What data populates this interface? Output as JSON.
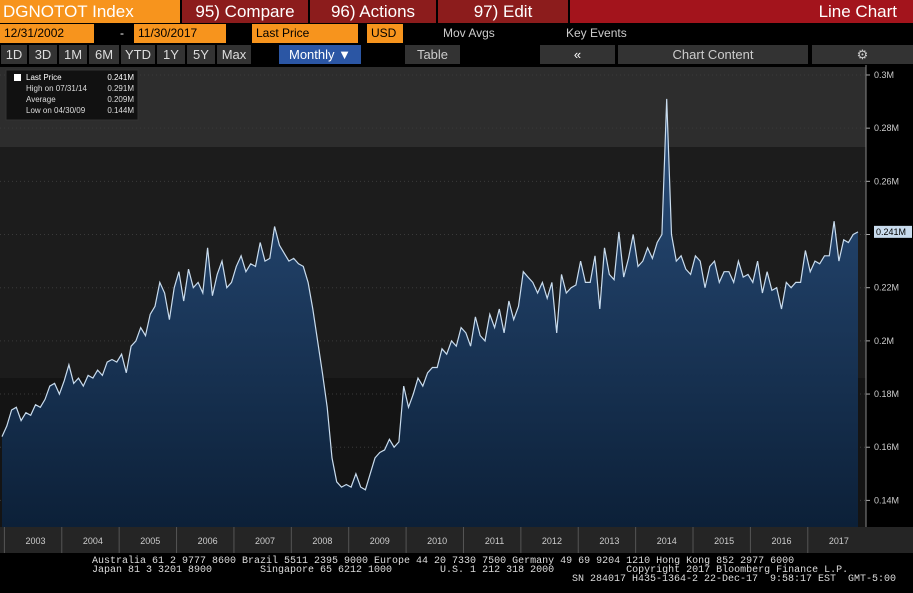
{
  "header": {
    "ticker": "DGNOTOT Index",
    "menu": [
      "95) Compare",
      "96) Actions",
      "97) Edit"
    ],
    "view": "Line Chart"
  },
  "controls": {
    "start_date": "12/31/2002",
    "separator": "-",
    "end_date": "11/30/2017",
    "field": "Last Price",
    "currency": "USD",
    "mov_avgs": "Mov Avgs",
    "key_events": "Key Events",
    "ranges": [
      "1D",
      "3D",
      "1M",
      "6M",
      "YTD",
      "1Y",
      "5Y",
      "Max"
    ],
    "period": "Monthly ▼",
    "table": "Table",
    "collapse": "«",
    "content": "Chart Content"
  },
  "legend": [
    {
      "label": "High on 07/31/14",
      "value": "0.291M"
    },
    {
      "label": "Average",
      "value": "0.209M"
    },
    {
      "label": "Low on 04/30/09",
      "value": "0.144M"
    }
  ],
  "chart_data": {
    "type": "line",
    "categories": [
      null,
      null,
      null,
      null,
      null,
      null,
      null,
      "2003",
      null,
      null,
      null,
      null,
      null,
      null,
      null,
      null,
      null,
      null,
      null,
      "2004",
      null,
      null,
      null,
      null,
      null,
      null,
      null,
      null,
      null,
      null,
      null,
      "2005",
      null,
      null,
      null,
      null,
      null,
      null,
      null,
      null,
      null,
      null,
      null,
      "2006",
      null,
      null,
      null,
      null,
      null,
      null,
      null,
      null,
      null,
      null,
      null,
      "2007",
      null,
      null,
      null,
      null,
      null,
      null,
      null,
      null,
      null,
      null,
      null,
      "2008",
      null,
      null,
      null,
      null,
      null,
      null,
      null,
      null,
      null,
      null,
      null,
      "2009",
      null,
      null,
      null,
      null,
      null,
      null,
      null,
      null,
      null,
      null,
      null,
      "2010",
      null,
      null,
      null,
      null,
      null,
      null,
      null,
      null,
      null,
      null,
      null,
      "2011",
      null,
      null,
      null,
      null,
      null,
      null,
      null,
      null,
      null,
      null,
      null,
      "2012",
      null,
      null,
      null,
      null,
      null,
      null,
      null,
      null,
      null,
      null,
      null,
      "2013",
      null,
      null,
      null,
      null,
      null,
      null,
      null,
      null,
      null,
      null,
      null,
      "2014",
      null,
      null,
      null,
      null,
      null,
      null,
      null,
      null,
      null,
      null,
      null,
      "2015",
      null,
      null,
      null,
      null,
      null,
      null,
      null,
      null,
      null,
      null,
      null,
      "2016",
      null,
      null,
      null,
      null,
      null,
      null,
      null,
      null,
      null,
      null,
      null,
      "2017",
      null,
      null,
      null,
      null
    ],
    "series": [
      {
        "name": "Last Price",
        "color": "#c9dcee",
        "values": [
          0.164,
          0.168,
          0.174,
          0.175,
          0.17,
          0.173,
          0.172,
          0.176,
          0.175,
          0.178,
          0.183,
          0.184,
          0.18,
          0.185,
          0.191,
          0.184,
          0.186,
          0.183,
          0.187,
          0.186,
          0.189,
          0.187,
          0.192,
          0.193,
          0.192,
          0.195,
          0.188,
          0.198,
          0.2,
          0.205,
          0.202,
          0.21,
          0.213,
          0.222,
          0.218,
          0.208,
          0.22,
          0.226,
          0.215,
          0.227,
          0.22,
          0.222,
          0.218,
          0.235,
          0.217,
          0.225,
          0.23,
          0.22,
          0.222,
          0.228,
          0.232,
          0.226,
          0.229,
          0.228,
          0.237,
          0.23,
          0.231,
          0.243,
          0.236,
          0.233,
          0.23,
          0.231,
          0.229,
          0.228,
          0.222,
          0.212,
          0.2,
          0.188,
          0.175,
          0.156,
          0.147,
          0.145,
          0.146,
          0.145,
          0.15,
          0.145,
          0.144,
          0.15,
          0.156,
          0.158,
          0.159,
          0.163,
          0.16,
          0.162,
          0.183,
          0.175,
          0.18,
          0.186,
          0.183,
          0.188,
          0.19,
          0.19,
          0.197,
          0.195,
          0.2,
          0.198,
          0.205,
          0.203,
          0.198,
          0.209,
          0.202,
          0.2,
          0.21,
          0.205,
          0.212,
          0.203,
          0.215,
          0.208,
          0.213,
          0.226,
          0.224,
          0.222,
          0.218,
          0.222,
          0.216,
          0.222,
          0.203,
          0.225,
          0.218,
          0.22,
          0.221,
          0.23,
          0.222,
          0.222,
          0.232,
          0.212,
          0.235,
          0.225,
          0.223,
          0.241,
          0.224,
          0.231,
          0.24,
          0.228,
          0.23,
          0.235,
          0.231,
          0.237,
          0.24,
          0.291,
          0.24,
          0.23,
          0.232,
          0.227,
          0.225,
          0.232,
          0.23,
          0.22,
          0.228,
          0.23,
          0.222,
          0.226,
          0.226,
          0.222,
          0.23,
          0.224,
          0.225,
          0.222,
          0.23,
          0.218,
          0.226,
          0.219,
          0.22,
          0.212,
          0.222,
          0.22,
          0.222,
          0.222,
          0.234,
          0.226,
          0.23,
          0.229,
          0.232,
          0.232,
          0.245,
          0.23,
          0.238,
          0.237,
          0.24,
          0.241
        ]
      }
    ],
    "ylim": [
      0.13,
      0.303
    ],
    "yticks": [
      {
        "value": 0.14,
        "label": "0.14M"
      },
      {
        "value": 0.16,
        "label": "0.16M"
      },
      {
        "value": 0.18,
        "label": "0.18M"
      },
      {
        "value": 0.2,
        "label": "0.2M"
      },
      {
        "value": 0.22,
        "label": "0.22M"
      },
      {
        "value": 0.24,
        "label": "0.24M"
      },
      {
        "value": 0.26,
        "label": "0.26M"
      },
      {
        "value": 0.28,
        "label": "0.28M"
      },
      {
        "value": 0.3,
        "label": "0.3M"
      }
    ],
    "last_label": "0.241M"
  },
  "footer": [
    "Australia 61 2 9777 8600 Brazil 5511 2395 9000 Europe 44 20 7330 7500 Germany 49 69 9204 1210 Hong Kong 852 2977 6000",
    "Japan 81 3 3201 8900        Singapore 65 6212 1000        U.S. 1 212 318 2000            Copyright 2017 Bloomberg Finance L.P.",
    "SN 284017 H435-1364-2 22-Dec-17  9:58:17 EST  GMT-5:00"
  ]
}
